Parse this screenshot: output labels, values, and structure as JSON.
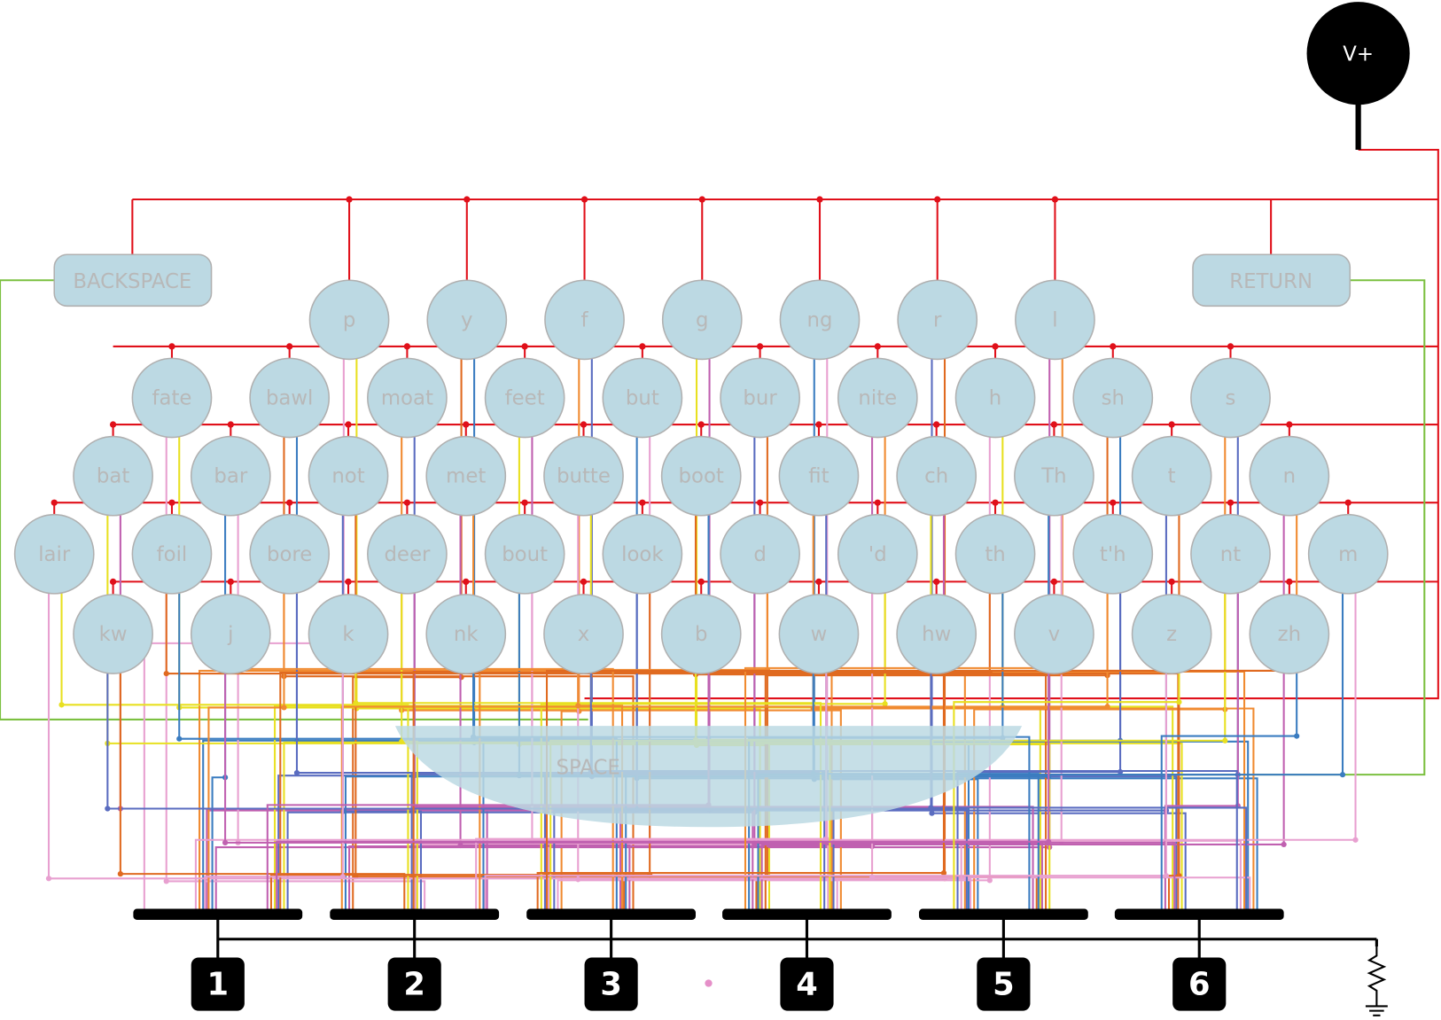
{
  "power": "V+",
  "keys": {
    "rows": [
      [
        "p",
        "y",
        "f",
        "g",
        "ng",
        "r",
        "l"
      ],
      [
        "fate",
        "bawl",
        "moat",
        "feet",
        "but",
        "bur",
        "nite",
        "h",
        "sh",
        "s"
      ],
      [
        "bat",
        "bar",
        "not",
        "met",
        "butte",
        "boot",
        "fit",
        "ch",
        "Th",
        "t",
        "n"
      ],
      [
        "lair",
        "foil",
        "bore",
        "deer",
        "bout",
        "look",
        "d",
        "'d",
        "th",
        "t'h",
        "nt",
        "m"
      ],
      [
        "kw",
        "j",
        "k",
        "nk",
        "x",
        "b",
        "w",
        "hw",
        "v",
        "z",
        "zh"
      ]
    ]
  },
  "special": {
    "backspace": "BACKSPACE",
    "return": "RETURN",
    "space": "SPACE"
  },
  "outputs": [
    "1",
    "2",
    "3",
    "4",
    "5",
    "6"
  ]
}
